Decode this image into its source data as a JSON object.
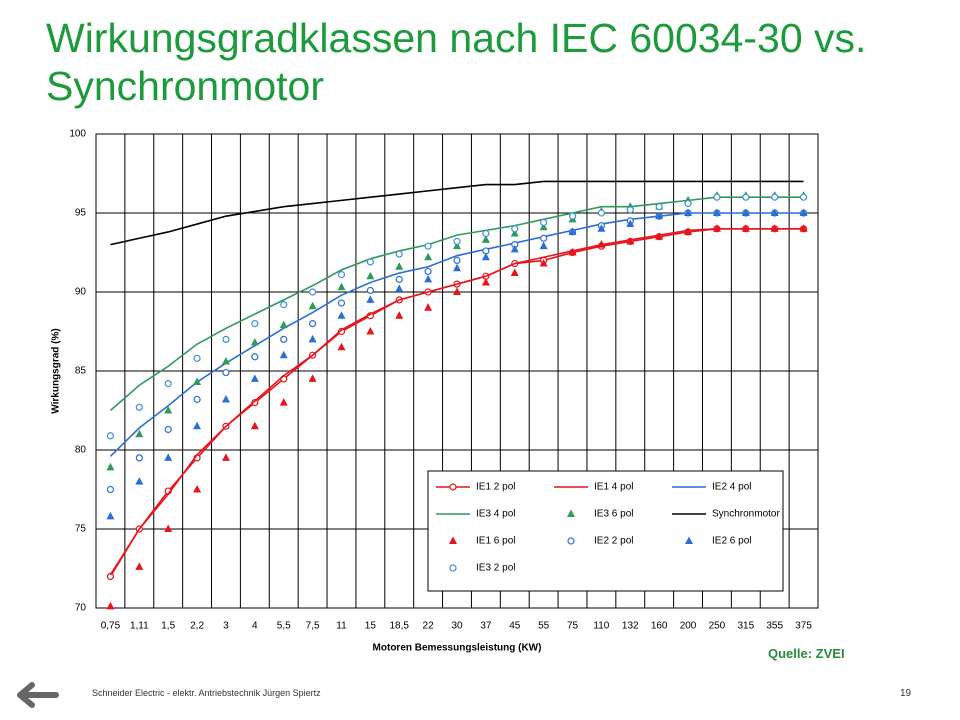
{
  "chart_data": {
    "type": "line",
    "title": "Wirkungsgradklassen nach IEC 60034-30 vs. Synchronmotor",
    "x_label": "Motoren Bemessungsleistung (KW)",
    "y_label": "Wirkungsgrad (%)",
    "categories": [
      "0,75",
      "1,11",
      "1,5",
      "2,2",
      "3",
      "4",
      "5,5",
      "7,5",
      "11",
      "15",
      "18,5",
      "22",
      "30",
      "37",
      "45",
      "55",
      "75",
      "110",
      "132",
      "160",
      "200",
      "250",
      "315",
      "355",
      "375"
    ],
    "ylim": [
      70,
      100
    ],
    "yticks": [
      70,
      75,
      80,
      85,
      90,
      95,
      100
    ],
    "grid": true,
    "legend": "lower-right",
    "series": [
      {
        "name": "IE1 2 pol",
        "color": "#e8141b",
        "line": true,
        "marker": "circle",
        "values": [
          72.0,
          75.0,
          77.4,
          79.5,
          81.5,
          83.0,
          84.5,
          86.0,
          87.5,
          88.5,
          89.5,
          90.0,
          90.5,
          91.0,
          91.8,
          92.0,
          92.5,
          92.9,
          93.2,
          93.5,
          93.8,
          94.0,
          94.0,
          94.0,
          94.0
        ]
      },
      {
        "name": "IE1 4 pol",
        "color": "#e8141b",
        "line": true,
        "marker": null,
        "values": [
          72.1,
          75.0,
          77.2,
          79.7,
          81.5,
          83.1,
          84.7,
          86.0,
          87.6,
          88.6,
          89.5,
          90.0,
          90.5,
          91.0,
          91.8,
          92.2,
          92.6,
          93.0,
          93.3,
          93.6,
          93.9,
          94.0,
          94.0,
          94.0,
          94.0
        ]
      },
      {
        "name": "IE2 4 pol",
        "color": "#2b6fd6",
        "line": true,
        "marker": null,
        "values": [
          79.6,
          81.4,
          82.8,
          84.3,
          85.5,
          86.6,
          87.7,
          88.7,
          89.8,
          90.6,
          91.2,
          91.6,
          92.3,
          92.7,
          93.1,
          93.5,
          93.9,
          94.3,
          94.6,
          94.8,
          95.0,
          95.0,
          95.0,
          95.0,
          95.0
        ]
      },
      {
        "name": "IE3 4 pol",
        "color": "#2f9a5c",
        "line": true,
        "marker": null,
        "values": [
          82.5,
          84.1,
          85.3,
          86.7,
          87.7,
          88.6,
          89.5,
          90.4,
          91.4,
          92.1,
          92.6,
          93.0,
          93.6,
          93.9,
          94.2,
          94.6,
          95.0,
          95.4,
          95.4,
          95.6,
          95.8,
          96.0,
          96.0,
          96.0,
          96.0
        ]
      },
      {
        "name": "IE3 6 pol",
        "color": "#2f9a5c",
        "line": false,
        "marker": "triangle",
        "values": [
          78.9,
          81.0,
          82.5,
          84.3,
          85.6,
          86.8,
          87.9,
          89.1,
          90.3,
          91.0,
          91.6,
          92.2,
          92.9,
          93.3,
          93.7,
          94.1,
          94.6,
          95.1,
          95.4,
          95.4,
          95.8,
          96.1,
          96.1,
          96.1,
          96.1
        ]
      },
      {
        "name": "Synchronmotor",
        "color": "#000000",
        "line": true,
        "marker": null,
        "values": [
          93.0,
          93.4,
          93.8,
          94.3,
          94.8,
          95.1,
          95.4,
          95.6,
          95.8,
          96.0,
          96.2,
          96.4,
          96.6,
          96.8,
          96.8,
          97.0,
          97.0,
          97.0,
          97.0,
          97.0,
          97.0,
          97.0,
          97.0,
          97.0,
          97.0
        ]
      },
      {
        "name": "IE1 6 pol",
        "color": "#e8141b",
        "line": false,
        "marker": "triangle",
        "values": [
          70.1,
          72.6,
          75.0,
          77.5,
          79.5,
          81.5,
          83.0,
          84.5,
          86.5,
          87.5,
          88.5,
          89.0,
          90.0,
          90.6,
          91.2,
          91.8,
          92.5,
          93.0,
          93.2,
          93.5,
          93.8,
          94.0,
          94.0,
          94.0,
          94.0
        ]
      },
      {
        "name": "IE2 2 pol",
        "color": "#2b6fd6",
        "line": false,
        "marker": "circle",
        "values": [
          77.5,
          79.5,
          81.3,
          83.2,
          84.9,
          85.9,
          87.0,
          88.0,
          89.3,
          90.1,
          90.8,
          91.3,
          92.0,
          92.6,
          93.0,
          93.4,
          93.8,
          94.2,
          94.5,
          94.8,
          95.0,
          95.0,
          95.0,
          95.0,
          95.0
        ]
      },
      {
        "name": "IE2 6 pol",
        "color": "#2b6fd6",
        "line": false,
        "marker": "triangle",
        "values": [
          75.8,
          78.0,
          79.5,
          81.5,
          83.2,
          84.5,
          86.0,
          87.0,
          88.5,
          89.5,
          90.2,
          90.8,
          91.5,
          92.2,
          92.7,
          92.9,
          93.8,
          94.0,
          94.3,
          94.8,
          95.0,
          95.0,
          95.0,
          95.0,
          95.0
        ]
      },
      {
        "name": "IE3 2 pol",
        "color": "#3f8fd8",
        "line": false,
        "marker": "circle",
        "values": [
          80.9,
          82.7,
          84.2,
          85.8,
          87.0,
          88.0,
          89.2,
          90.0,
          91.1,
          91.9,
          92.4,
          92.9,
          93.2,
          93.7,
          94.0,
          94.4,
          94.8,
          95.0,
          95.2,
          95.4,
          95.6,
          96.0,
          96.0,
          96.0,
          96.0
        ]
      }
    ]
  },
  "slide": {
    "source": "Quelle: ZVEI",
    "footer": "Schneider Electric - elektr. Antriebstechnik Jürgen Spiertz",
    "page_number": "19"
  }
}
